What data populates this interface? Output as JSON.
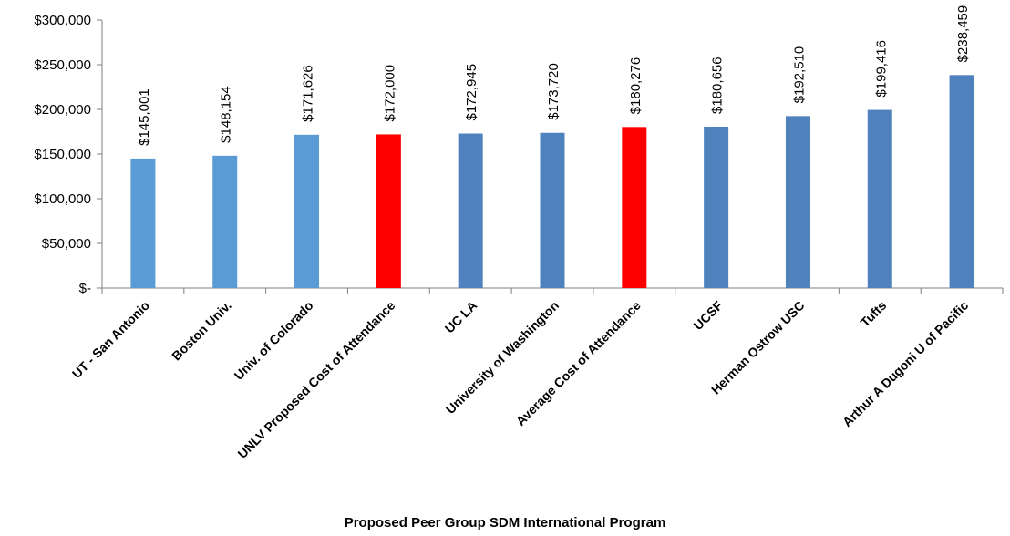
{
  "chart_data": {
    "type": "bar",
    "xlabel": "Proposed Peer Group SDM International Program",
    "ylabel": "",
    "ylim": [
      0,
      300000
    ],
    "yticks": [
      0,
      50000,
      100000,
      150000,
      200000,
      250000,
      300000
    ],
    "ytick_labels": [
      "$-",
      "$50,000",
      "$100,000",
      "$150,000",
      "$200,000",
      "$250,000",
      "$300,000"
    ],
    "grid": false,
    "legend": "none",
    "categories": [
      "UT - San Antonio",
      "Boston Univ.",
      "Univ. of Colorado",
      "UNLV Proposed Cost of Attendance",
      "UC LA",
      "University of Washington",
      "Average Cost of Attendance",
      "UCSF",
      "Herman Ostrow USC",
      "Tufts",
      "Arthur A Dugoni U of Pacific"
    ],
    "values": [
      145001,
      148154,
      171626,
      172000,
      172945,
      173720,
      180276,
      180656,
      192510,
      199416,
      238459
    ],
    "value_labels": [
      "$145,001",
      "$148,154",
      "$171,626",
      "$172,000",
      "$172,945",
      "$173,720",
      "$180,276",
      "$180,656",
      "$192,510",
      "$199,416",
      "$238,459"
    ],
    "bar_colors": [
      "#5B9BD5",
      "#5B9BD5",
      "#5B9BD5",
      "#FF0000",
      "#4F81BD",
      "#4F81BD",
      "#FF0000",
      "#4F81BD",
      "#4F81BD",
      "#4F81BD",
      "#4F81BD"
    ],
    "axis_color": "#808080"
  }
}
